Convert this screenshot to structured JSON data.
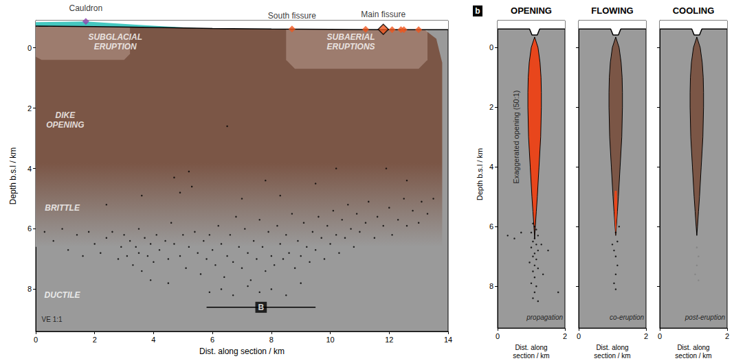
{
  "chart_data": [
    {
      "type": "scatter",
      "panel": "a",
      "x_label": "Dist. along section / km",
      "y_label": "Depth b.s.l / km",
      "xlim": [
        0,
        14
      ],
      "xticks": [
        0,
        2,
        4,
        6,
        8,
        10,
        12,
        14
      ],
      "ylim": [
        -0.9,
        9.4
      ],
      "yticks": [
        0,
        2,
        4,
        6,
        8
      ],
      "surface": {
        "x": [
          0,
          2,
          4,
          6,
          8,
          10,
          12,
          14
        ],
        "depth": [
          -0.72,
          -0.7,
          -0.67,
          -0.64,
          -0.62,
          -0.61,
          -0.6,
          -0.6
        ]
      },
      "ice": {
        "x": [
          0,
          1,
          1.7,
          2.5,
          3.5,
          4.5,
          5.5
        ],
        "top": [
          -0.85,
          -0.86,
          -0.87,
          -0.82,
          -0.76,
          -0.7,
          -0.65
        ],
        "bottom": [
          -0.72,
          -0.71,
          -0.7,
          -0.69,
          -0.67,
          -0.655,
          -0.65
        ],
        "color": "#46c8c0"
      },
      "dike_zone": {
        "outline": [
          [
            0,
            -0.7
          ],
          [
            13.2,
            -0.6
          ],
          [
            13.6,
            -0.3
          ],
          [
            13.8,
            0.5
          ],
          [
            13.8,
            6.6
          ],
          [
            0,
            6.6
          ]
        ],
        "color": "#7b5646"
      },
      "eruption_zones": [
        {
          "outline": [
            [
              0,
              -0.7
            ],
            [
              3.2,
              -0.67
            ],
            [
              3.2,
              0.2
            ],
            [
              3.0,
              0.4
            ],
            [
              0.2,
              0.4
            ],
            [
              0,
              0.3
            ]
          ]
        },
        {
          "outline": [
            [
              8.5,
              -0.62
            ],
            [
              13.3,
              -0.6
            ],
            [
              13.3,
              0.4
            ],
            [
              13.0,
              0.7
            ],
            [
              8.8,
              0.7
            ],
            [
              8.5,
              0.4
            ]
          ]
        }
      ],
      "vents": [
        {
          "name": "Cauldron",
          "x": 1.7,
          "depth": -0.87,
          "color": "#8e44ad",
          "marker": "diamond"
        },
        {
          "name": "South fissure",
          "x": 8.7,
          "depth": -0.62,
          "color": "#f0561e",
          "marker": "diamond"
        },
        {
          "x": 11.2,
          "depth": -0.61,
          "color": "#f0561e",
          "marker": "diamond"
        },
        {
          "name": "Main fissure",
          "x": 11.8,
          "depth": -0.61,
          "color": "#f0561e",
          "marker": "outlined diamond"
        },
        {
          "x": 12.1,
          "depth": -0.6,
          "color": "#f0561e",
          "marker": "diamond"
        },
        {
          "x": 12.4,
          "depth": -0.6,
          "color": "#f0561e",
          "marker": "diamond"
        },
        {
          "x": 12.5,
          "depth": -0.6,
          "color": "#f0561e",
          "marker": "diamond"
        },
        {
          "x": 13.0,
          "depth": -0.6,
          "color": "#f0561e",
          "marker": "diamond"
        }
      ],
      "earthquakes": {
        "color": "#000000",
        "points": [
          [
            0.3,
            6.1
          ],
          [
            0.6,
            6.4
          ],
          [
            0.9,
            6.0
          ],
          [
            1.1,
            6.7
          ],
          [
            1.4,
            6.2
          ],
          [
            1.6,
            6.9
          ],
          [
            1.8,
            6.1
          ],
          [
            2.0,
            6.5
          ],
          [
            2.2,
            6.8
          ],
          [
            2.4,
            6.3
          ],
          [
            2.6,
            6.1
          ],
          [
            2.8,
            7.0
          ],
          [
            2.9,
            6.6
          ],
          [
            3.0,
            6.2
          ],
          [
            3.1,
            6.9
          ],
          [
            3.2,
            6.4
          ],
          [
            3.3,
            7.2
          ],
          [
            3.4,
            6.6
          ],
          [
            3.5,
            6.0
          ],
          [
            3.5,
            6.8
          ],
          [
            3.6,
            7.4
          ],
          [
            3.7,
            6.3
          ],
          [
            3.8,
            6.9
          ],
          [
            3.9,
            6.5
          ],
          [
            4.0,
            7.1
          ],
          [
            4.1,
            6.2
          ],
          [
            4.2,
            6.7
          ],
          [
            4.4,
            6.4
          ],
          [
            4.5,
            7.0
          ],
          [
            4.6,
            5.8
          ],
          [
            4.7,
            6.5
          ],
          [
            4.9,
            6.9
          ],
          [
            5.0,
            6.2
          ],
          [
            5.1,
            7.3
          ],
          [
            5.2,
            6.6
          ],
          [
            5.3,
            4.6
          ],
          [
            5.4,
            6.1
          ],
          [
            5.5,
            6.8
          ],
          [
            5.6,
            7.5
          ],
          [
            5.7,
            6.4
          ],
          [
            5.8,
            7.0
          ],
          [
            5.9,
            6.2
          ],
          [
            6.0,
            6.7
          ],
          [
            6.1,
            7.2
          ],
          [
            6.2,
            5.9
          ],
          [
            6.3,
            6.5
          ],
          [
            6.4,
            7.6
          ],
          [
            6.5,
            6.9
          ],
          [
            6.6,
            6.2
          ],
          [
            6.7,
            7.1
          ],
          [
            6.8,
            5.6
          ],
          [
            6.9,
            6.6
          ],
          [
            7.0,
            7.3
          ],
          [
            7.1,
            6.0
          ],
          [
            7.2,
            6.8
          ],
          [
            7.3,
            7.7
          ],
          [
            7.4,
            6.4
          ],
          [
            7.5,
            7.0
          ],
          [
            7.6,
            5.7
          ],
          [
            7.7,
            6.6
          ],
          [
            7.8,
            7.4
          ],
          [
            7.9,
            6.1
          ],
          [
            8.0,
            6.9
          ],
          [
            8.1,
            7.2
          ],
          [
            8.2,
            5.9
          ],
          [
            8.3,
            6.5
          ],
          [
            8.4,
            7.0
          ],
          [
            8.5,
            6.2
          ],
          [
            8.6,
            6.8
          ],
          [
            8.7,
            5.5
          ],
          [
            8.8,
            7.3
          ],
          [
            8.9,
            6.4
          ],
          [
            9.0,
            6.9
          ],
          [
            9.1,
            5.8
          ],
          [
            9.2,
            6.6
          ],
          [
            9.3,
            7.1
          ],
          [
            9.4,
            6.1
          ],
          [
            9.5,
            6.7
          ],
          [
            9.6,
            5.6
          ],
          [
            9.7,
            6.3
          ],
          [
            9.8,
            7.0
          ],
          [
            9.9,
            5.9
          ],
          [
            10.0,
            6.5
          ],
          [
            10.1,
            5.4
          ],
          [
            10.2,
            6.2
          ],
          [
            10.3,
            6.8
          ],
          [
            10.4,
            5.7
          ],
          [
            10.5,
            6.3
          ],
          [
            10.6,
            5.2
          ],
          [
            10.7,
            6.0
          ],
          [
            10.8,
            6.6
          ],
          [
            10.9,
            5.5
          ],
          [
            11.0,
            6.1
          ],
          [
            11.2,
            5.8
          ],
          [
            11.3,
            5.1
          ],
          [
            11.5,
            6.3
          ],
          [
            11.6,
            5.6
          ],
          [
            11.8,
            5.9
          ],
          [
            12.0,
            5.3
          ],
          [
            12.1,
            6.2
          ],
          [
            12.3,
            5.7
          ],
          [
            12.5,
            5.0
          ],
          [
            12.6,
            5.9
          ],
          [
            12.8,
            5.4
          ],
          [
            13.0,
            5.8
          ],
          [
            13.1,
            5.1
          ],
          [
            13.3,
            5.5
          ],
          [
            13.5,
            5.0
          ],
          [
            5.9,
            8.1
          ],
          [
            6.3,
            8.0
          ],
          [
            6.7,
            8.2
          ],
          [
            7.2,
            7.9
          ],
          [
            7.6,
            8.1
          ],
          [
            8.0,
            8.0
          ],
          [
            8.5,
            8.2
          ],
          [
            9.0,
            7.8
          ],
          [
            4.5,
            7.8
          ],
          [
            3.9,
            7.7
          ],
          [
            4.7,
            4.3
          ],
          [
            4.9,
            4.8
          ],
          [
            5.2,
            4.1
          ],
          [
            6.5,
            2.6
          ],
          [
            7.8,
            4.4
          ],
          [
            8.3,
            4.9
          ],
          [
            9.5,
            4.5
          ],
          [
            10.2,
            4.0
          ],
          [
            11.9,
            4.0
          ],
          [
            3.6,
            4.9
          ],
          [
            2.4,
            5.2
          ],
          [
            12.6,
            4.4
          ],
          [
            7.0,
            5.0
          ]
        ]
      },
      "scale_bar": {
        "label": "B",
        "x": [
          5.8,
          9.5
        ],
        "depth": 8.6
      },
      "annotations": [
        {
          "text": "SUBGLACIAL ERUPTION",
          "x": 2.7,
          "y": -0.2,
          "color": "#ffffff"
        },
        {
          "text": "SUBAERIAL ERUPTIONS",
          "x": 10.7,
          "y": -0.2,
          "color": "#ffffff"
        },
        {
          "text": "DIKE OPENING",
          "x": 1.0,
          "y": 2.4,
          "color": "#ffffff"
        },
        {
          "text": "BRITTLE",
          "x": 0.9,
          "y": 5.3,
          "color": "#ffffff"
        },
        {
          "text": "DUCTILE",
          "x": 0.9,
          "y": 8.2,
          "color": "#ffffff"
        },
        {
          "text": "VE 1:1",
          "x": 0.55,
          "y": 9.0,
          "color": "#000000"
        }
      ]
    },
    {
      "type": "scatter",
      "panel": "b",
      "title": "OPENING",
      "x_label": "Dist. along section / km",
      "y_label": "Depth b.s.l / km",
      "xlim": [
        0,
        2
      ],
      "xticks": [
        0,
        2
      ],
      "ylim": [
        -0.9,
        9.4
      ],
      "yticks": [
        0,
        2,
        4,
        6,
        8
      ],
      "surface": {
        "x": [
          0,
          0.95,
          1.02,
          1.18,
          1.25,
          2
        ],
        "depth": [
          -0.62,
          -0.62,
          -0.42,
          -0.42,
          -0.62,
          -0.62
        ]
      },
      "dike": {
        "center": 1.1,
        "depth": [
          -0.35,
          0,
          0.5,
          1,
          1.5,
          2,
          3,
          4,
          5,
          5.5,
          6.0,
          6.4
        ],
        "half_width": [
          0,
          0.1,
          0.16,
          0.19,
          0.2,
          0.2,
          0.18,
          0.13,
          0.08,
          0.05,
          0.02,
          0
        ],
        "color": "#e8461c"
      },
      "earthquakes": {
        "color": "#000000",
        "points": [
          [
            1.05,
            5.9
          ],
          [
            1.1,
            6.0
          ],
          [
            1.15,
            6.1
          ],
          [
            1.0,
            6.2
          ],
          [
            1.2,
            6.3
          ],
          [
            1.1,
            6.4
          ],
          [
            1.05,
            6.5
          ],
          [
            1.15,
            6.6
          ],
          [
            1.0,
            6.7
          ],
          [
            1.2,
            6.8
          ],
          [
            1.1,
            6.9
          ],
          [
            1.05,
            7.0
          ],
          [
            1.15,
            7.1
          ],
          [
            0.95,
            7.2
          ],
          [
            1.1,
            7.3
          ],
          [
            1.2,
            7.4
          ],
          [
            1.05,
            7.5
          ],
          [
            1.1,
            7.7
          ],
          [
            1.0,
            7.9
          ],
          [
            1.15,
            8.0
          ],
          [
            1.1,
            8.2
          ],
          [
            1.05,
            8.4
          ],
          [
            1.2,
            8.5
          ],
          [
            0.3,
            6.3
          ],
          [
            0.5,
            6.4
          ],
          [
            0.7,
            6.2
          ],
          [
            1.3,
            6.6
          ],
          [
            1.5,
            6.8
          ],
          [
            1.8,
            8.2
          ],
          [
            1.35,
            7.6
          ]
        ]
      },
      "vertical_note": "Exaggerated opening (50:1)",
      "note": "propagation"
    },
    {
      "type": "scatter",
      "title": "FLOWING",
      "tick_labels": "x",
      "x_label": "Dist. along section / km",
      "xlim": [
        0,
        2
      ],
      "xticks": [
        0,
        2
      ],
      "ylim": [
        -0.9,
        9.4
      ],
      "yticks": [
        0,
        2,
        4,
        6,
        8
      ],
      "surface": {
        "x": [
          0,
          0.95,
          1.02,
          1.18,
          1.25,
          2
        ],
        "depth": [
          -0.62,
          -0.62,
          -0.42,
          -0.42,
          -0.62,
          -0.62
        ]
      },
      "dike": {
        "center": 1.1,
        "depth": [
          -0.35,
          0,
          0.5,
          1,
          1.5,
          2,
          3,
          4,
          5,
          5.5,
          6.0,
          6.3
        ],
        "half_width": [
          0,
          0.1,
          0.16,
          0.19,
          0.2,
          0.2,
          0.18,
          0.13,
          0.08,
          0.05,
          0.02,
          0
        ],
        "color": "#7b5646"
      },
      "melt": {
        "depth": [
          4.8,
          5.2,
          5.6,
          6.0,
          6.3
        ],
        "half_width": [
          0.03,
          0.045,
          0.035,
          0.018,
          0
        ],
        "color": "#e8461c"
      },
      "earthquakes": {
        "color": "#000000",
        "points": [
          [
            1.1,
            6.2
          ],
          [
            1.15,
            6.5
          ],
          [
            1.05,
            6.8
          ],
          [
            1.1,
            7.0
          ],
          [
            1.15,
            7.3
          ],
          [
            1.1,
            7.6
          ],
          [
            1.05,
            7.9
          ],
          [
            1.1,
            8.1
          ],
          [
            1.2,
            6.0
          ],
          [
            1.0,
            6.6
          ]
        ]
      },
      "note": "co-eruption"
    },
    {
      "type": "scatter",
      "title": "COOLING",
      "tick_labels": "x",
      "x_label": "Dist. along section / km",
      "xlim": [
        0,
        2
      ],
      "xticks": [
        0,
        2
      ],
      "ylim": [
        -0.9,
        9.4
      ],
      "yticks": [
        0,
        2,
        4,
        6,
        8
      ],
      "surface": {
        "x": [
          0,
          0.95,
          1.02,
          1.18,
          1.25,
          2
        ],
        "depth": [
          -0.62,
          -0.62,
          -0.42,
          -0.42,
          -0.62,
          -0.62
        ]
      },
      "dike": {
        "center": 1.1,
        "depth": [
          -0.35,
          0,
          0.5,
          1,
          1.5,
          2,
          3,
          4,
          5,
          5.5,
          6.0,
          6.3
        ],
        "half_width": [
          0,
          0.1,
          0.16,
          0.19,
          0.2,
          0.2,
          0.18,
          0.13,
          0.08,
          0.05,
          0.02,
          0
        ],
        "color": "#7b5646"
      },
      "earthquakes": {
        "color": "#808080",
        "points": [
          [
            1.1,
            6.7
          ],
          [
            1.15,
            7.0
          ],
          [
            1.1,
            7.3
          ],
          [
            1.05,
            7.6
          ],
          [
            1.15,
            7.8
          ]
        ]
      },
      "note": "post-eruption"
    }
  ]
}
